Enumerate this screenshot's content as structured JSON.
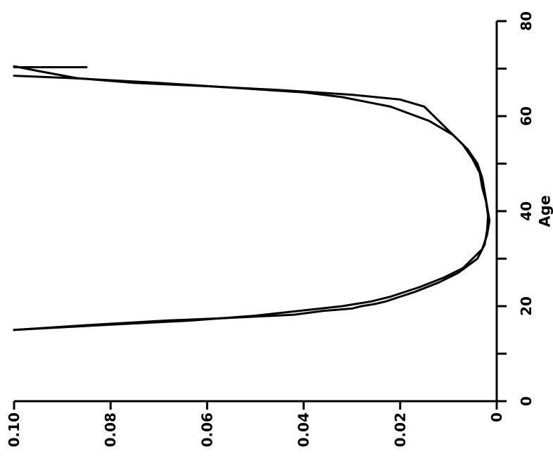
{
  "chart_data": {
    "type": "line",
    "orientation": "rotated-90",
    "xlabel": "Age",
    "ylabel": "",
    "xlim": [
      0,
      80
    ],
    "ylim": [
      0,
      0.1
    ],
    "x_ticks": [
      0,
      10,
      20,
      30,
      40,
      50,
      60,
      70,
      80
    ],
    "x_tick_labels": [
      "0",
      "",
      "20",
      "",
      "40",
      "",
      "60",
      "",
      "80"
    ],
    "y_ticks": [
      0,
      0.02,
      0.04,
      0.06,
      0.08,
      0.1
    ],
    "y_tick_labels": [
      "0",
      "0.02",
      "0.04",
      "0.06",
      "0.08",
      "0.10"
    ],
    "series": [
      {
        "points": [
          [
            15.0,
            0.1
          ],
          [
            16.0,
            0.082
          ],
          [
            17.0,
            0.063
          ],
          [
            18.0,
            0.05
          ],
          [
            19.0,
            0.041
          ],
          [
            20.0,
            0.032
          ],
          [
            21.0,
            0.026
          ],
          [
            22.0,
            0.022
          ],
          [
            24.0,
            0.016
          ],
          [
            26.0,
            0.011
          ],
          [
            28.0,
            0.007
          ],
          [
            30.0,
            0.005
          ],
          [
            32.0,
            0.003
          ],
          [
            35.0,
            0.002
          ],
          [
            38.0,
            0.0015
          ],
          [
            41.0,
            0.002
          ],
          [
            44.0,
            0.0025
          ],
          [
            47.0,
            0.003
          ],
          [
            50.0,
            0.004
          ],
          [
            53.0,
            0.006
          ],
          [
            56.0,
            0.009
          ],
          [
            59.0,
            0.014
          ],
          [
            62.0,
            0.022
          ],
          [
            64.0,
            0.032
          ],
          [
            65.0,
            0.04
          ],
          [
            66.0,
            0.055
          ],
          [
            67.0,
            0.07
          ],
          [
            68.0,
            0.088
          ],
          [
            68.5,
            0.1
          ]
        ]
      },
      {
        "points": [
          [
            15.0,
            0.1
          ],
          [
            16.0,
            0.085
          ],
          [
            17.0,
            0.068
          ],
          [
            17.5,
            0.056
          ],
          [
            18.2,
            0.042
          ],
          [
            19.0,
            0.036
          ],
          [
            19.5,
            0.03
          ],
          [
            20.0,
            0.028
          ],
          [
            20.5,
            0.025
          ],
          [
            21.0,
            0.023
          ],
          [
            22.0,
            0.02
          ],
          [
            23.0,
            0.017
          ],
          [
            25.0,
            0.012
          ],
          [
            27.0,
            0.008
          ],
          [
            30.0,
            0.004
          ],
          [
            33.0,
            0.0025
          ],
          [
            36.0,
            0.002
          ],
          [
            39.0,
            0.0018
          ],
          [
            42.0,
            0.0022
          ],
          [
            45.0,
            0.003
          ],
          [
            48.0,
            0.0035
          ],
          [
            51.0,
            0.005
          ],
          [
            54.0,
            0.007
          ],
          [
            57.0,
            0.01
          ],
          [
            60.0,
            0.013
          ],
          [
            62.0,
            0.015
          ],
          [
            63.5,
            0.02
          ],
          [
            64.5,
            0.03
          ],
          [
            65.5,
            0.045
          ],
          [
            66.3,
            0.06
          ],
          [
            67.0,
            0.075
          ],
          [
            68.0,
            0.087
          ],
          [
            69.5,
            0.095
          ],
          [
            70.5,
            0.1
          ]
        ]
      },
      {
        "points": [
          [
            70.3,
            0.1
          ],
          [
            70.3,
            0.085
          ]
        ]
      }
    ]
  }
}
